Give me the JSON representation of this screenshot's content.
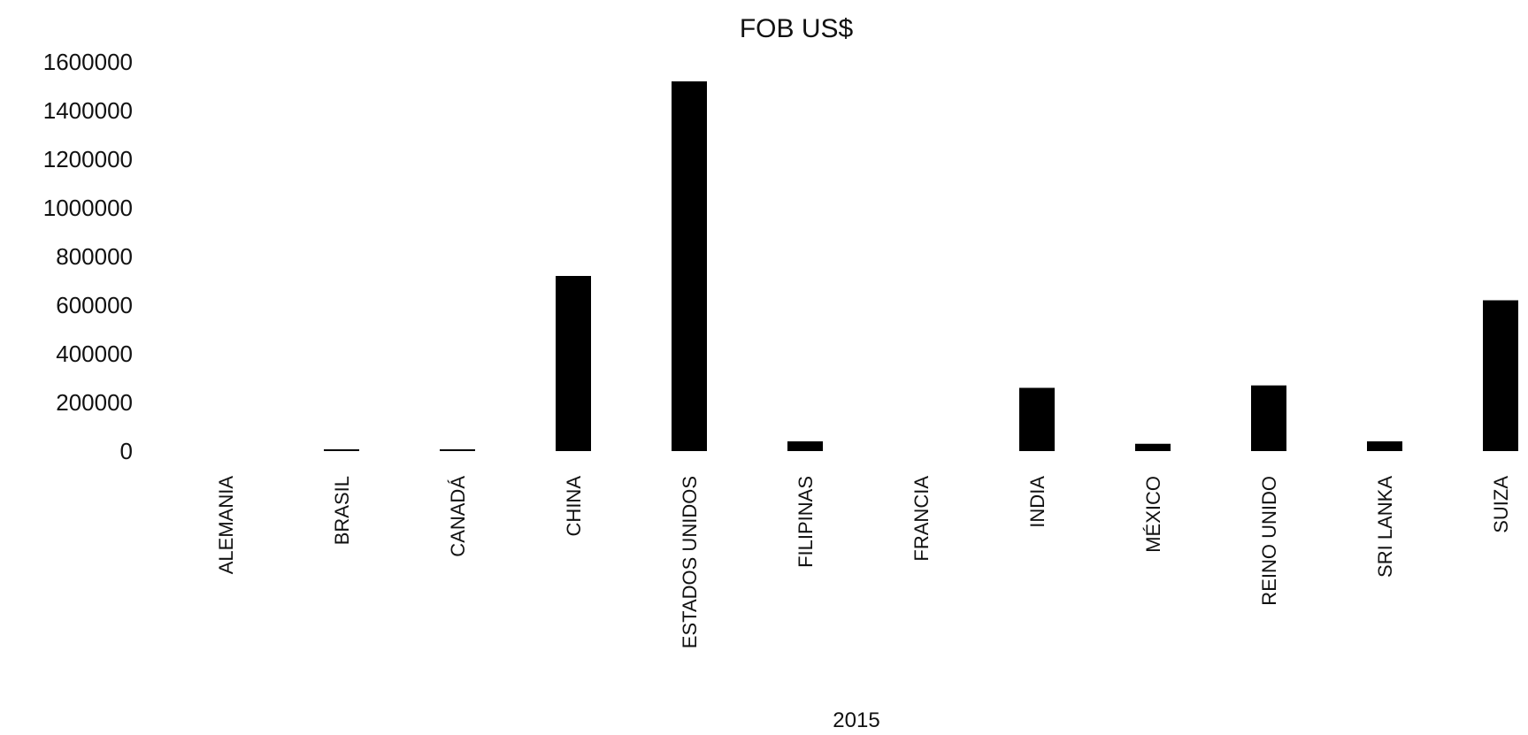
{
  "chart_data": {
    "type": "bar",
    "title": "FOB US$",
    "xlabel": "2015",
    "ylabel": "",
    "ylim": [
      0,
      1600000
    ],
    "yticks": [
      0,
      200000,
      400000,
      600000,
      800000,
      1000000,
      1200000,
      1400000,
      1600000
    ],
    "ytick_labels": [
      "0",
      "200000",
      "400000",
      "600000",
      "800000",
      "1000000",
      "1200000",
      "1400000",
      "1600000"
    ],
    "categories": [
      "ALEMANIA",
      "BRASIL",
      "CANADÁ",
      "CHINA",
      "ESTADOS UNIDOS",
      "FILIPINAS",
      "FRANCIA",
      "INDIA",
      "MÉXICO",
      "REINO UNIDO",
      "SRI LANKA",
      "SUIZA"
    ],
    "values": [
      0,
      2000,
      5000,
      720000,
      1520000,
      40000,
      0,
      260000,
      30000,
      270000,
      40000,
      620000
    ],
    "grid": false,
    "legend": "none",
    "bar_color": "#000000"
  }
}
